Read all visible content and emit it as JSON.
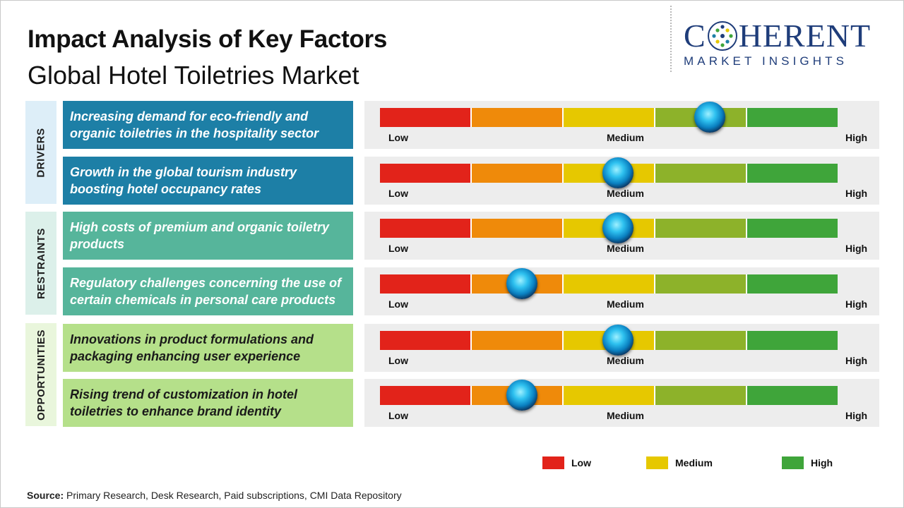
{
  "header": {
    "title": "Impact Analysis of Key Factors",
    "subtitle": "Global Hotel Toiletries Market"
  },
  "logo": {
    "brand_prefix": "C",
    "brand_suffix": "HERENT",
    "tagline": "MARKET INSIGHTS"
  },
  "scale_labels": {
    "low": "Low",
    "medium": "Medium",
    "high": "High"
  },
  "colors": {
    "driver": "#1d7fa6",
    "restraint": "#56b59b",
    "opportunity": "#b5e08a",
    "segments": [
      "#e2231a",
      "#ef8a0a",
      "#e6c800",
      "#8db22a",
      "#3fa53a"
    ]
  },
  "chart_data": {
    "type": "gauge",
    "scale": [
      "Low",
      "Medium",
      "High"
    ],
    "scale_range": [
      0,
      1
    ],
    "categories": [
      {
        "name": "DRIVERS",
        "factors": [
          {
            "text": "Increasing demand for eco-friendly and organic toiletries in the hospitality sector",
            "impact": 0.72
          },
          {
            "text": "Growth in the global tourism industry boosting hotel occupancy rates",
            "impact": 0.52
          }
        ]
      },
      {
        "name": "RESTRAINTS",
        "factors": [
          {
            "text": "High costs of premium and organic toiletry products",
            "impact": 0.52
          },
          {
            "text": "Regulatory challenges concerning the use of certain chemicals in personal care products",
            "impact": 0.31
          }
        ]
      },
      {
        "name": "OPPORTUNITIES",
        "factors": [
          {
            "text": "Innovations in product formulations and packaging enhancing user experience",
            "impact": 0.52
          },
          {
            "text": "Rising trend of customization in hotel toiletries to enhance brand identity",
            "impact": 0.31
          }
        ]
      }
    ]
  },
  "legend": [
    {
      "label": "Low",
      "color": "#e2231a"
    },
    {
      "label": "Medium",
      "color": "#e6c800"
    },
    {
      "label": "High",
      "color": "#3fa53a"
    }
  ],
  "source": {
    "label": "Source:",
    "text": "Primary Research, Desk Research, Paid subscriptions, CMI Data Repository"
  }
}
